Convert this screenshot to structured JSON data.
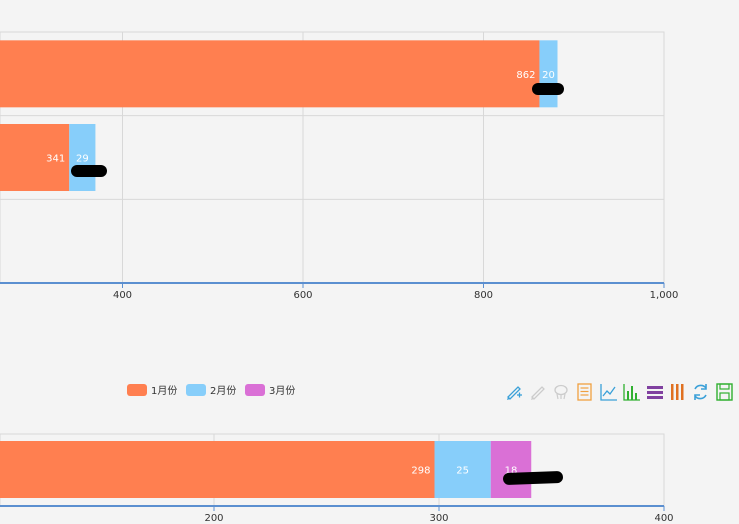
{
  "chart_data": [
    {
      "type": "bar",
      "orientation": "horizontal",
      "stacked": true,
      "xlim": [
        0,
        1000
      ],
      "x_ticks": [
        "400",
        "600",
        "800",
        "1,000"
      ],
      "x_tick_values": [
        400,
        600,
        800,
        1000
      ],
      "grid": true,
      "rows": [
        {
          "values": [
            862,
            20
          ],
          "labels": [
            "862",
            "20"
          ]
        },
        {
          "values": [
            341,
            29
          ],
          "labels": [
            "341",
            "29"
          ]
        },
        {
          "values": [
            0,
            0
          ],
          "labels": [
            "",
            ""
          ]
        }
      ],
      "series_colors": [
        "#ff7f50",
        "#87cefa"
      ]
    },
    {
      "type": "bar",
      "orientation": "horizontal",
      "stacked": true,
      "xlim": [
        0,
        400
      ],
      "x_ticks": [
        "200",
        "300",
        "400"
      ],
      "x_tick_values": [
        200,
        300,
        400
      ],
      "grid": true,
      "legend": {
        "placement": "top-left",
        "items": [
          {
            "name": "1月份",
            "color": "#ff7f50"
          },
          {
            "name": "2月份",
            "color": "#87cefa"
          },
          {
            "name": "3月份",
            "color": "#da70d6"
          }
        ]
      },
      "rows": [
        {
          "values": [
            298,
            25,
            18
          ],
          "labels": [
            "298",
            "25",
            "18"
          ]
        }
      ],
      "series_colors": [
        "#ff7f50",
        "#87cefa",
        "#da70d6"
      ]
    }
  ],
  "toolbox": {
    "icons": [
      {
        "name": "zoom-icon",
        "color": "#3aa0d8"
      },
      {
        "name": "zoom-reset-icon",
        "color": "#cccccc"
      },
      {
        "name": "lasso-icon",
        "color": "#cccccc"
      },
      {
        "name": "data-view-icon",
        "color": "#f0a040"
      },
      {
        "name": "line-chart-icon",
        "color": "#3aa0d8"
      },
      {
        "name": "bar-chart-icon",
        "color": "#30b030"
      },
      {
        "name": "stack-icon",
        "color": "#8040a0"
      },
      {
        "name": "tiled-icon",
        "color": "#e07020"
      },
      {
        "name": "restore-icon",
        "color": "#3aa0d8"
      },
      {
        "name": "save-image-icon",
        "color": "#30b030"
      }
    ]
  }
}
